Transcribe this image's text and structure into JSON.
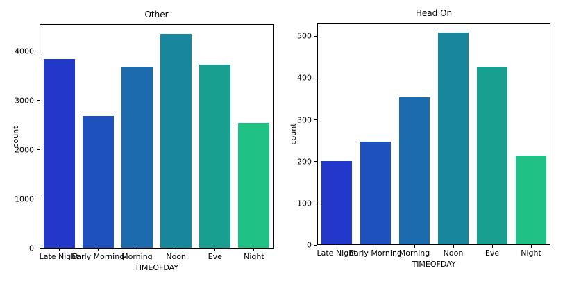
{
  "figure": {
    "background_color": "#ffffff",
    "text_color": "#000000",
    "axis_color": "#000000"
  },
  "chart_data": [
    {
      "type": "bar",
      "title": "Other",
      "categories": [
        "Late Night",
        "Early Morning",
        "Morning",
        "Noon",
        "Eve",
        "Night"
      ],
      "values": [
        3830,
        2670,
        3680,
        4330,
        3720,
        2530
      ],
      "xlabel": "TIMEOFDAY",
      "ylabel": "count",
      "ylim": [
        0,
        4546
      ],
      "yticks": [
        0,
        1000,
        2000,
        3000,
        4000
      ],
      "bar_colors": [
        "#2138cb",
        "#1e51bd",
        "#1c6bae",
        "#18869d",
        "#199f90",
        "#1fc185"
      ],
      "grid": false
    },
    {
      "type": "bar",
      "title": "Head On",
      "categories": [
        "Late Night",
        "Early Morning",
        "Morning",
        "Noon",
        "Eve",
        "Night"
      ],
      "values": [
        199,
        246,
        353,
        507,
        425,
        213
      ],
      "xlabel": "TIMEOFDAY",
      "ylabel": "count",
      "ylim": [
        0,
        532
      ],
      "yticks": [
        0,
        100,
        200,
        300,
        400,
        500
      ],
      "bar_colors": [
        "#2138cb",
        "#1e51bd",
        "#1c6bae",
        "#18869d",
        "#199f90",
        "#1fc185"
      ],
      "grid": false
    }
  ]
}
